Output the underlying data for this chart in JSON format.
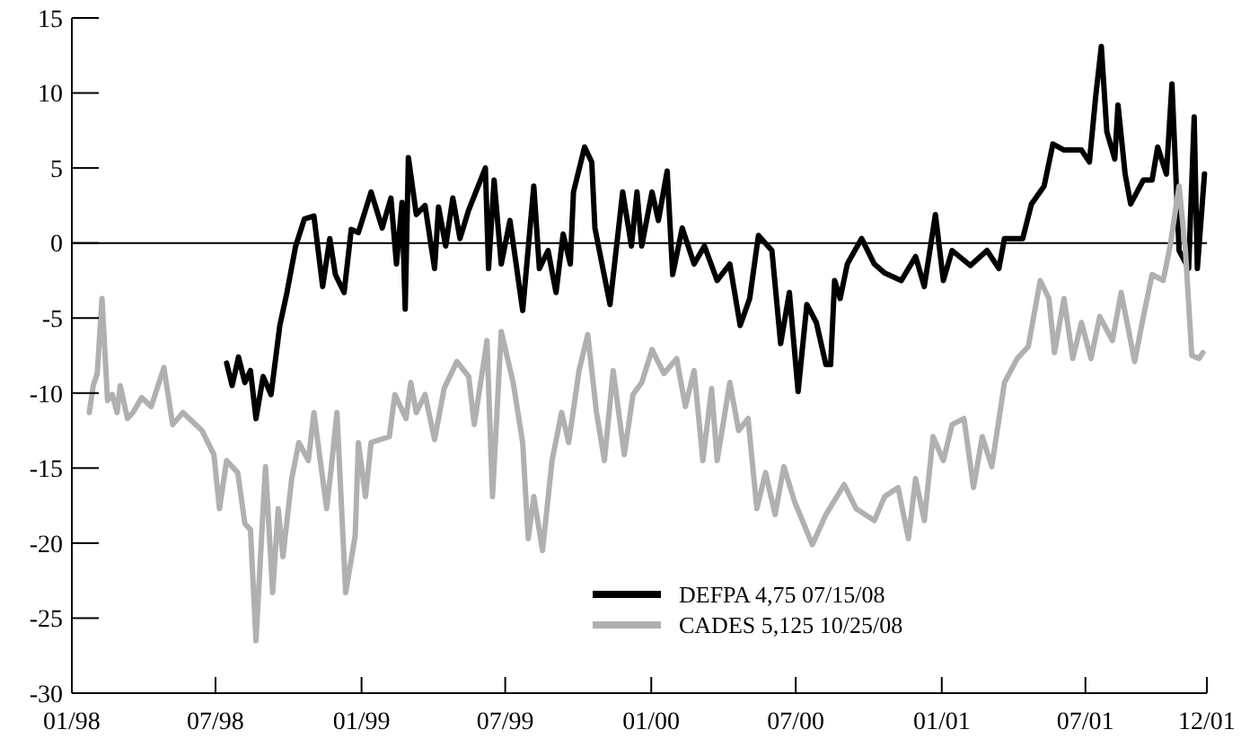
{
  "chart_data": {
    "type": "line",
    "xlim": [
      "1998-01-01",
      "2001-12-01"
    ],
    "xticks": [
      {
        "value": "1998-01",
        "label": "01/98"
      },
      {
        "value": "1998-07",
        "label": "07/98"
      },
      {
        "value": "1999-01",
        "label": "01/99"
      },
      {
        "value": "1999-07",
        "label": "07/99"
      },
      {
        "value": "2000-01",
        "label": "01/00"
      },
      {
        "value": "2000-07",
        "label": "07/00"
      },
      {
        "value": "2001-01",
        "label": "01/01"
      },
      {
        "value": "2001-07",
        "label": "07/01"
      },
      {
        "value": "2001-12",
        "label": "12/01"
      }
    ],
    "ylim": [
      -30,
      15
    ],
    "yticks": [
      -30,
      -25,
      -20,
      -15,
      -10,
      -5,
      0,
      5,
      10,
      15
    ],
    "grid": false,
    "legend": "bottom",
    "line_style": "solid",
    "ref_lines": [
      {
        "axis": "y",
        "value": 0,
        "color": "#000000"
      }
    ],
    "series": [
      {
        "name": "DEFPA 4,75 07/15/08",
        "color": "#000000",
        "x": [
          "1998-07-15",
          "1998-07-22",
          "1998-07-30",
          "1998-08-07",
          "1998-08-14",
          "1998-08-21",
          "1998-08-30",
          "1998-09-09",
          "1998-09-20",
          "1998-09-29",
          "1998-10-10",
          "1998-10-21",
          "1998-11-02",
          "1998-11-13",
          "1998-11-22",
          "1998-11-29",
          "1998-12-10",
          "1998-12-19",
          "1998-12-28",
          "1999-01-13",
          "1999-01-27",
          "1999-02-07",
          "1999-02-14",
          "1999-02-21",
          "1999-02-25",
          "1999-03-01",
          "1999-03-11",
          "1999-03-22",
          "1999-04-03",
          "1999-04-08",
          "1999-04-17",
          "1999-04-26",
          "1999-05-05",
          "1999-05-16",
          "1999-06-06",
          "1999-06-10",
          "1999-06-17",
          "1999-06-26",
          "1999-07-07",
          "1999-07-23",
          "1999-08-06",
          "1999-08-13",
          "1999-08-24",
          "1999-09-03",
          "1999-09-12",
          "1999-09-21",
          "1999-09-25",
          "1999-10-09",
          "1999-10-18",
          "1999-10-22",
          "1999-11-10",
          "1999-11-26",
          "1999-12-07",
          "1999-12-14",
          "1999-12-20",
          "2000-01-02",
          "2000-01-10",
          "2000-01-21",
          "2000-01-28",
          "2000-02-09",
          "2000-02-24",
          "2000-03-08",
          "2000-03-24",
          "2000-04-09",
          "2000-04-22",
          "2000-05-04",
          "2000-05-15",
          "2000-06-01",
          "2000-06-12",
          "2000-06-23",
          "2000-07-04",
          "2000-07-15",
          "2000-07-27",
          "2000-08-08",
          "2000-08-14",
          "2000-08-19",
          "2000-08-26",
          "2000-09-04",
          "2000-09-22",
          "2000-10-08",
          "2000-10-21",
          "2000-11-11",
          "2000-11-29",
          "2000-12-10",
          "2000-12-24",
          "2001-01-03",
          "2001-01-14",
          "2001-02-06",
          "2001-02-27",
          "2001-03-14",
          "2001-03-21",
          "2001-04-13",
          "2001-04-24",
          "2001-05-10",
          "2001-05-21",
          "2001-06-04",
          "2001-06-26",
          "2001-07-06",
          "2001-07-14",
          "2001-07-21",
          "2001-07-28",
          "2001-08-07",
          "2001-08-11",
          "2001-08-20",
          "2001-08-27",
          "2001-09-12",
          "2001-09-23",
          "2001-09-30",
          "2001-10-11",
          "2001-10-18",
          "2001-10-27",
          "2001-11-08",
          "2001-11-15",
          "2001-11-19",
          "2001-11-28"
        ],
        "values": [
          -8.0,
          -9.5,
          -7.6,
          -9.3,
          -8.5,
          -11.7,
          -8.9,
          -10.1,
          -5.5,
          -3.3,
          -0.2,
          1.6,
          1.8,
          -2.9,
          0.3,
          -2.1,
          -3.3,
          0.9,
          0.7,
          3.4,
          1.0,
          3.0,
          -1.4,
          2.7,
          -4.4,
          5.7,
          1.9,
          2.5,
          -1.7,
          2.4,
          -0.2,
          3.0,
          0.3,
          2.2,
          5.0,
          -1.7,
          4.2,
          -1.4,
          1.5,
          -4.5,
          3.8,
          -1.7,
          -0.5,
          -3.3,
          0.6,
          -1.4,
          3.4,
          6.4,
          5.4,
          1.0,
          -4.1,
          3.4,
          -0.2,
          3.4,
          -0.2,
          3.4,
          1.5,
          4.8,
          -2.1,
          1.0,
          -1.4,
          -0.2,
          -2.5,
          -1.4,
          -5.5,
          -3.7,
          0.5,
          -0.5,
          -6.7,
          -3.3,
          -9.9,
          -4.1,
          -5.3,
          -8.1,
          -8.1,
          -2.5,
          -3.7,
          -1.4,
          0.3,
          -1.4,
          -2.0,
          -2.5,
          -0.9,
          -2.9,
          1.9,
          -2.5,
          -0.5,
          -1.5,
          -0.5,
          -1.7,
          0.3,
          0.3,
          2.6,
          3.8,
          6.6,
          6.2,
          6.2,
          5.4,
          9.8,
          13.1,
          7.4,
          5.6,
          9.2,
          4.6,
          2.6,
          4.2,
          4.2,
          6.4,
          4.6,
          10.6,
          -0.5,
          -1.7,
          8.4,
          -1.7,
          4.6
        ]
      },
      {
        "name": "CADES 5,125 10/25/08",
        "color": "#b0b0b0",
        "x": [
          "1998-01-23",
          "1998-01-28",
          "1998-02-02",
          "1998-02-08",
          "1998-02-15",
          "1998-02-21",
          "1998-02-27",
          "1998-03-03",
          "1998-03-12",
          "1998-03-19",
          "1998-03-30",
          "1998-04-11",
          "1998-04-27",
          "1998-05-08",
          "1998-05-21",
          "1998-06-14",
          "1998-06-29",
          "1998-07-06",
          "1998-07-15",
          "1998-07-29",
          "1998-08-07",
          "1998-08-14",
          "1998-08-21",
          "1998-08-30",
          "1998-09-02",
          "1998-09-11",
          "1998-09-18",
          "1998-09-24",
          "1998-10-05",
          "1998-10-14",
          "1998-10-26",
          "1998-11-02",
          "1998-11-18",
          "1998-11-24",
          "1998-12-01",
          "1998-12-12",
          "1998-12-24",
          "1998-12-28",
          "1999-01-06",
          "1999-01-13",
          "1999-02-05",
          "1999-02-12",
          "1999-02-26",
          "1999-03-04",
          "1999-03-11",
          "1999-03-22",
          "1999-04-03",
          "1999-04-15",
          "1999-05-01",
          "1999-05-16",
          "1999-05-23",
          "1999-06-08",
          "1999-06-15",
          "1999-06-26",
          "1999-07-11",
          "1999-07-23",
          "1999-07-30",
          "1999-08-06",
          "1999-08-17",
          "1999-08-29",
          "1999-09-10",
          "1999-09-19",
          "1999-10-02",
          "1999-10-13",
          "1999-10-24",
          "1999-11-03",
          "1999-11-14",
          "1999-11-28",
          "1999-12-09",
          "1999-12-20",
          "2000-01-02",
          "2000-01-17",
          "2000-02-02",
          "2000-02-13",
          "2000-02-24",
          "2000-03-06",
          "2000-03-17",
          "2000-03-24",
          "2000-04-09",
          "2000-04-20",
          "2000-05-02",
          "2000-05-13",
          "2000-05-24",
          "2000-06-05",
          "2000-06-16",
          "2000-06-30",
          "2000-07-22",
          "2000-08-08",
          "2000-08-31",
          "2000-09-15",
          "2000-10-08",
          "2000-10-21",
          "2000-11-07",
          "2000-11-20",
          "2000-11-29",
          "2000-12-10",
          "2000-12-21",
          "2001-01-03",
          "2001-01-14",
          "2001-01-29",
          "2001-02-10",
          "2001-02-21",
          "2001-03-05",
          "2001-03-21",
          "2001-04-06",
          "2001-04-20",
          "2001-05-05",
          "2001-05-16",
          "2001-05-23",
          "2001-06-04",
          "2001-06-15",
          "2001-06-26",
          "2001-07-08",
          "2001-07-19",
          "2001-08-04",
          "2001-08-15",
          "2001-09-01",
          "2001-09-12",
          "2001-09-23",
          "2001-10-07",
          "2001-10-16",
          "2001-10-27",
          "2001-11-04",
          "2001-11-12",
          "2001-11-21",
          "2001-11-26"
        ],
        "values": [
          -11.3,
          -9.5,
          -8.7,
          -3.7,
          -10.5,
          -10.1,
          -11.3,
          -9.5,
          -11.7,
          -11.3,
          -10.3,
          -10.9,
          -8.3,
          -12.1,
          -11.3,
          -12.5,
          -14.1,
          -17.7,
          -14.5,
          -15.3,
          -18.7,
          -19.1,
          -26.5,
          -17.7,
          -14.9,
          -23.3,
          -17.7,
          -20.9,
          -15.7,
          -13.3,
          -14.5,
          -11.3,
          -17.7,
          -14.9,
          -11.3,
          -23.3,
          -19.5,
          -13.3,
          -16.9,
          -13.3,
          -12.9,
          -10.1,
          -11.7,
          -9.3,
          -11.3,
          -10.1,
          -13.1,
          -9.7,
          -7.9,
          -8.9,
          -12.1,
          -6.5,
          -16.9,
          -5.9,
          -9.3,
          -13.3,
          -19.7,
          -16.9,
          -20.5,
          -14.5,
          -11.3,
          -13.3,
          -8.5,
          -6.1,
          -11.3,
          -14.5,
          -8.5,
          -14.1,
          -10.1,
          -9.3,
          -7.1,
          -8.7,
          -7.7,
          -10.9,
          -8.5,
          -14.5,
          -9.7,
          -14.5,
          -9.3,
          -12.5,
          -11.7,
          -17.7,
          -15.3,
          -18.1,
          -14.9,
          -17.3,
          -20.1,
          -18.1,
          -16.1,
          -17.7,
          -18.5,
          -16.9,
          -16.3,
          -19.7,
          -15.7,
          -18.5,
          -12.9,
          -14.5,
          -12.1,
          -11.7,
          -16.3,
          -12.9,
          -14.9,
          -9.3,
          -7.7,
          -6.9,
          -2.5,
          -3.7,
          -7.3,
          -3.7,
          -7.7,
          -5.3,
          -7.7,
          -4.9,
          -6.5,
          -3.3,
          -7.9,
          -4.9,
          -2.1,
          -2.5,
          -0.1,
          3.8,
          -0.5,
          -7.5,
          -7.7,
          -7.3
        ]
      }
    ]
  }
}
